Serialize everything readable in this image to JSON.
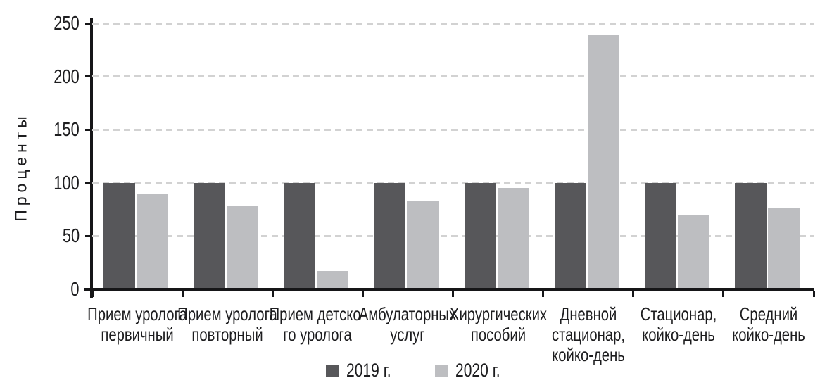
{
  "figure": {
    "background": "#ffffff",
    "axis_color": "#161618",
    "gridline_color": "#d2d2d2",
    "text_color": "#1d1d1f"
  },
  "chart_data": {
    "type": "bar",
    "title": "",
    "xlabel": "",
    "ylabel": "Проценты",
    "ylim": [
      0,
      250
    ],
    "yticks": [
      0,
      50,
      100,
      150,
      200,
      250
    ],
    "grid": "horizontal-dashed",
    "legend_position": "bottom-center",
    "categories": [
      [
        "Прием уролога",
        "первичный"
      ],
      [
        "Прием уролога",
        "повторный"
      ],
      [
        "Прием детско-",
        "го уролога"
      ],
      [
        "Амбулаторных",
        "услуг"
      ],
      [
        "Хирургических",
        "пособий"
      ],
      [
        "Дневной",
        "стационар,",
        "койко-день"
      ],
      [
        "Стационар,",
        "койко-день"
      ],
      [
        "Средний",
        "койко-день"
      ]
    ],
    "series": [
      {
        "name": "2019 г.",
        "color": "#57575a",
        "values": [
          100,
          100,
          100,
          100,
          100,
          100,
          100,
          100
        ]
      },
      {
        "name": "2020 г.",
        "color": "#bdbec1",
        "values": [
          90,
          78,
          17,
          83,
          95,
          239,
          70,
          77
        ]
      }
    ]
  }
}
